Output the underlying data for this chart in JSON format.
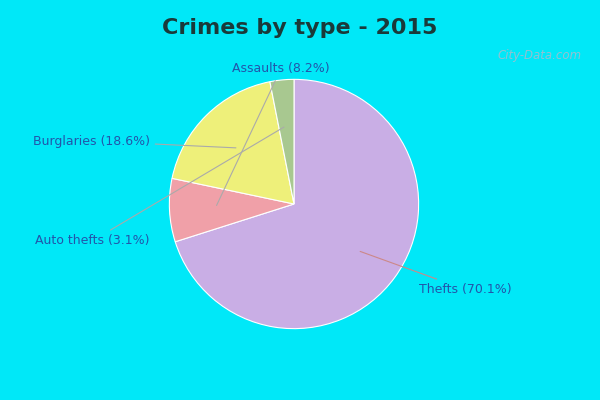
{
  "title": "Crimes by type - 2015",
  "slices": [
    {
      "label": "Thefts (70.1%)",
      "value": 70.1,
      "color": "#c9aee5"
    },
    {
      "label": "Assaults (8.2%)",
      "value": 8.2,
      "color": "#f0a0a8"
    },
    {
      "label": "Burglaries (18.6%)",
      "value": 18.6,
      "color": "#eef07a"
    },
    {
      "label": "Auto thefts (3.1%)",
      "value": 3.1,
      "color": "#a8c890"
    }
  ],
  "cyan_strip_color": "#00e8f8",
  "main_bg_color": "#d8ede0",
  "title_fontsize": 16,
  "label_fontsize": 9,
  "watermark": "City-Data.com",
  "title_color": "#1a3a3a",
  "label_color": "#2255aa"
}
